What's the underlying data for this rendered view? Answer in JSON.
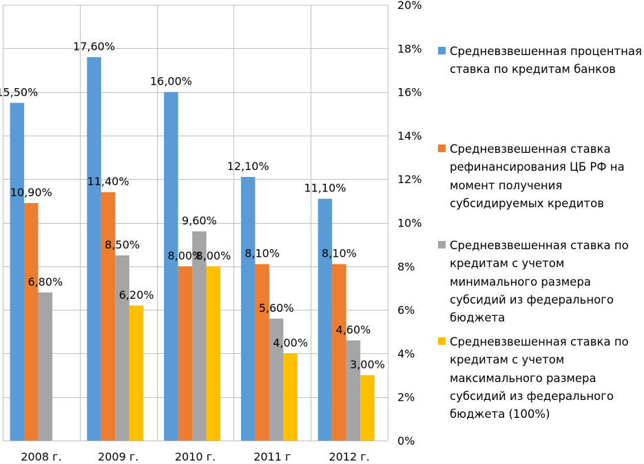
{
  "chart_data": {
    "type": "bar",
    "categories": [
      "2008 г.",
      "2009 г.",
      "2010 г.",
      "2011 г",
      "2012 г."
    ],
    "y_axis": {
      "position": "right",
      "range": [
        0,
        20
      ],
      "ticks": [
        0,
        2,
        4,
        6,
        8,
        10,
        12,
        14,
        16,
        18,
        20
      ],
      "tick_labels": [
        "0%",
        "2%",
        "4%",
        "6%",
        "8%",
        "10%",
        "12%",
        "14%",
        "16%",
        "18%",
        "20%"
      ]
    },
    "grid": true,
    "legend_placement": "right",
    "series": [
      {
        "name": "Средневзвешенная процентная ставка по кредитам банков",
        "color": "#5B9BD5",
        "values": [
          15.5,
          17.6,
          16.0,
          12.1,
          11.1
        ],
        "labels": [
          "15,50%",
          "17,60%",
          "16,00%",
          "12,10%",
          "11,10%"
        ]
      },
      {
        "name": "Средневзвешенная ставка рефинансирования ЦБ  РФ на момент получения субсидируемых кредитов",
        "color": "#ED7D31",
        "values": [
          10.9,
          11.4,
          8.0,
          8.1,
          8.1
        ],
        "labels": [
          "10,90%",
          "11,40%",
          "8,00%",
          "8,10%",
          "8,10%"
        ]
      },
      {
        "name": "Средневзвешенная ставка  по кредитам с учетом минимального размера субсидий из федерального бюджета",
        "color": "#A5A5A5",
        "values": [
          6.8,
          8.5,
          9.6,
          5.6,
          4.6
        ],
        "labels": [
          "6,80%",
          "8,50%",
          "9,60%",
          "5,60%",
          "4,60%"
        ]
      },
      {
        "name": "Средневзвешенная ставка  по кредитам с учетом максимального размера субсидий из федерального бюджета (100%)",
        "color": "#FFC000",
        "values": [
          null,
          6.2,
          8.0,
          4.0,
          3.0
        ],
        "labels": [
          "",
          "6,20%",
          "8,00%",
          "4,00%",
          "3,00%"
        ]
      }
    ]
  },
  "legend": {
    "items": [
      {
        "label": "Средневзвешенная процентная\nставка по кредитам банков",
        "color": "#5B9BD5"
      },
      {
        "label": "Средневзвешенная ставка\nрефинансирования ЦБ  РФ на\nмомент получения\nсубсидируемых кредитов",
        "color": "#ED7D31"
      },
      {
        "label": "Средневзвешенная ставка  по\nкредитам с учетом\nминимального размера\nсубсидий из федерального\nбюджета",
        "color": "#A5A5A5"
      },
      {
        "label": "Средневзвешенная ставка  по\nкредитам с учетом\nмаксимального размера\nсубсидий из федерального\nбюджета (100%)",
        "color": "#FFC000"
      }
    ]
  }
}
